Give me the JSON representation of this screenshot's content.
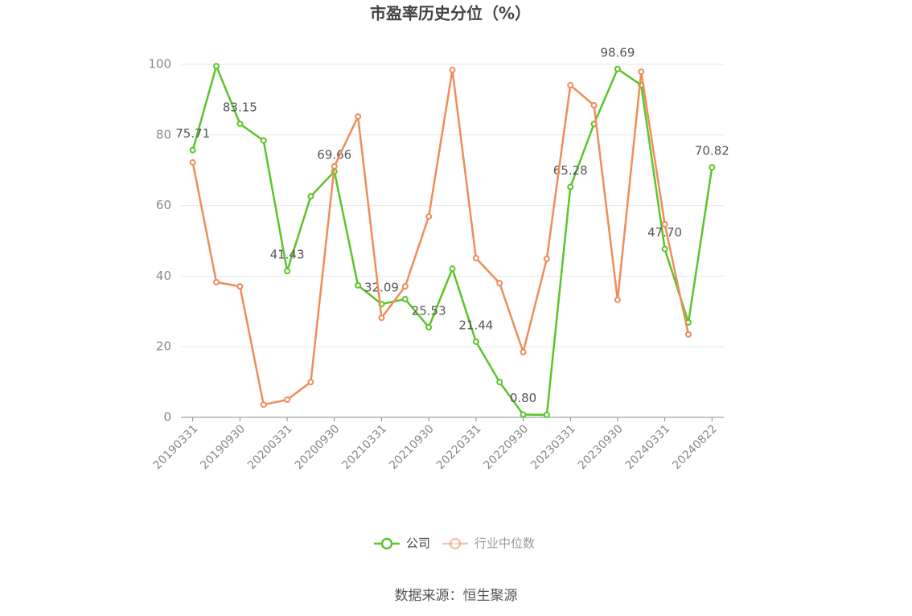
{
  "chart_data": {
    "type": "line",
    "title": "市盈率历史分位（%）",
    "source": "数据来源：恒生聚源",
    "categories": [
      "20190331",
      null,
      "20190930",
      null,
      "20200331",
      null,
      "20200930",
      null,
      "20210331",
      null,
      "20210930",
      null,
      "20220331",
      null,
      "20220930",
      null,
      "20230331",
      null,
      "20230930",
      null,
      "20240331",
      null,
      "20240822"
    ],
    "series": [
      {
        "name": "公司",
        "color": "#5bc429",
        "values": [
          75.71,
          99.5,
          83.15,
          78.4,
          41.43,
          62.6,
          69.66,
          37.4,
          32.09,
          33.5,
          25.53,
          42.1,
          21.44,
          10.0,
          0.8,
          0.7,
          65.28,
          83.1,
          98.69,
          94.1,
          47.7,
          26.9,
          70.82
        ],
        "value_labels": [
          "75.71",
          null,
          "83.15",
          null,
          "41.43",
          null,
          "69.66",
          null,
          "32.09",
          null,
          "25.53",
          null,
          "21.44",
          null,
          "0.80",
          null,
          "65.28",
          null,
          "98.69",
          null,
          "47.70",
          null,
          "70.82"
        ]
      },
      {
        "name": "行业中位数",
        "color": "#f08c5a",
        "values": [
          72.2,
          38.3,
          37.1,
          3.6,
          5.0,
          10.0,
          71.1,
          85.2,
          28.2,
          37.1,
          56.9,
          98.4,
          45.1,
          38.0,
          18.5,
          44.9,
          94.1,
          88.4,
          33.3,
          97.9,
          54.7,
          23.5,
          null
        ]
      }
    ],
    "ylim": [
      0,
      100
    ],
    "yticks": [
      0,
      20,
      40,
      60,
      80,
      100
    ],
    "grid": true,
    "legend": "bottom"
  }
}
